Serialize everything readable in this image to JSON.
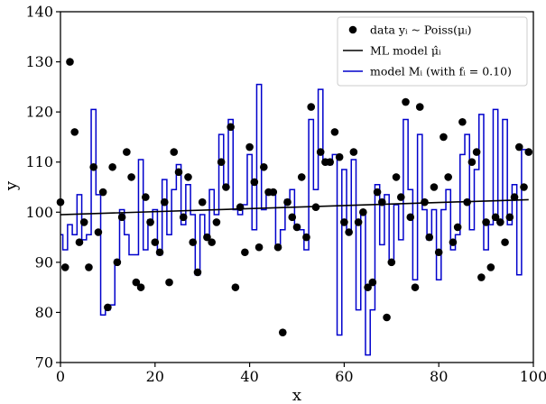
{
  "chart_data": {
    "type": "scatter",
    "xlabel": "x",
    "ylabel": "y",
    "xlim": [
      0,
      100
    ],
    "ylim": [
      70,
      140
    ],
    "x_ticks": [
      0,
      20,
      40,
      60,
      80,
      100
    ],
    "y_ticks": [
      70,
      80,
      90,
      100,
      110,
      120,
      130,
      140
    ],
    "grid": false,
    "legend_position": "top-right",
    "legend": [
      {
        "label": "data yᵢ ~ Poiss(μᵢ)",
        "marker": "dot",
        "color": "#000000"
      },
      {
        "label": "ML model μ̂ᵢ",
        "marker": "line",
        "color": "#000000"
      },
      {
        "label": "model Mᵢ  (with fᵢ = 0.10)",
        "marker": "line",
        "color": "#0000cc"
      }
    ],
    "scatter_points": [
      [
        0,
        102
      ],
      [
        1,
        89
      ],
      [
        2,
        130
      ],
      [
        3,
        116
      ],
      [
        4,
        94
      ],
      [
        5,
        98
      ],
      [
        6,
        89
      ],
      [
        7,
        109
      ],
      [
        8,
        96
      ],
      [
        9,
        104
      ],
      [
        10,
        81
      ],
      [
        11,
        109
      ],
      [
        12,
        90
      ],
      [
        13,
        99
      ],
      [
        14,
        112
      ],
      [
        15,
        107
      ],
      [
        16,
        86
      ],
      [
        17,
        85
      ],
      [
        18,
        103
      ],
      [
        19,
        98
      ],
      [
        20,
        94
      ],
      [
        21,
        92
      ],
      [
        22,
        102
      ],
      [
        23,
        86
      ],
      [
        24,
        112
      ],
      [
        25,
        108
      ],
      [
        26,
        99
      ],
      [
        27,
        107
      ],
      [
        28,
        94
      ],
      [
        29,
        88
      ],
      [
        30,
        102
      ],
      [
        31,
        95
      ],
      [
        32,
        94
      ],
      [
        33,
        98
      ],
      [
        34,
        110
      ],
      [
        35,
        105
      ],
      [
        36,
        117
      ],
      [
        37,
        85
      ],
      [
        38,
        101
      ],
      [
        39,
        92
      ],
      [
        40,
        113
      ],
      [
        41,
        106
      ],
      [
        42,
        93
      ],
      [
        43,
        109
      ],
      [
        44,
        104
      ],
      [
        45,
        104
      ],
      [
        46,
        93
      ],
      [
        47,
        76
      ],
      [
        48,
        102
      ],
      [
        49,
        99
      ],
      [
        50,
        97
      ],
      [
        51,
        107
      ],
      [
        52,
        95
      ],
      [
        53,
        121
      ],
      [
        54,
        101
      ],
      [
        55,
        112
      ],
      [
        56,
        110
      ],
      [
        57,
        110
      ],
      [
        58,
        116
      ],
      [
        59,
        111
      ],
      [
        60,
        98
      ],
      [
        61,
        96
      ],
      [
        62,
        112
      ],
      [
        63,
        98
      ],
      [
        64,
        100
      ],
      [
        65,
        85
      ],
      [
        66,
        86
      ],
      [
        67,
        104
      ],
      [
        68,
        102
      ],
      [
        69,
        79
      ],
      [
        70,
        90
      ],
      [
        71,
        107
      ],
      [
        72,
        103
      ],
      [
        73,
        122
      ],
      [
        74,
        99
      ],
      [
        75,
        85
      ],
      [
        76,
        121
      ],
      [
        77,
        102
      ],
      [
        78,
        95
      ],
      [
        79,
        105
      ],
      [
        80,
        92
      ],
      [
        81,
        115
      ],
      [
        82,
        107
      ],
      [
        83,
        94
      ],
      [
        84,
        97
      ],
      [
        85,
        118
      ],
      [
        86,
        102
      ],
      [
        87,
        110
      ],
      [
        88,
        112
      ],
      [
        89,
        87
      ],
      [
        90,
        98
      ],
      [
        91,
        89
      ],
      [
        92,
        99
      ],
      [
        93,
        98
      ],
      [
        94,
        94
      ],
      [
        95,
        99
      ],
      [
        96,
        103
      ],
      [
        97,
        113
      ],
      [
        98,
        105
      ],
      [
        99,
        112
      ]
    ],
    "ml_line": {
      "x": [
        0,
        99
      ],
      "y": [
        99.5,
        102.5
      ],
      "color": "#000000"
    },
    "model_step": {
      "color": "#0000cc",
      "values": [
        95.5,
        92.5,
        97.5,
        95.5,
        103.5,
        94.5,
        95.5,
        120.5,
        103.5,
        79.5,
        80.5,
        81.5,
        90.5,
        100.5,
        95.5,
        91.5,
        91.5,
        110.5,
        92.5,
        98.5,
        100.5,
        91.5,
        106.5,
        95.5,
        104.5,
        109.5,
        97.5,
        105.5,
        99.5,
        87.5,
        99.5,
        95.5,
        104.5,
        99.5,
        115.5,
        105.5,
        118.5,
        100.5,
        99.5,
        101.5,
        111.5,
        96.5,
        125.5,
        100.5,
        103.5,
        103.5,
        93.5,
        96.5,
        102.5,
        104.5,
        97.5,
        96.5,
        92.5,
        118.5,
        104.5,
        124.5,
        110.5,
        109.5,
        111.5,
        75.5,
        108.5,
        96.5,
        110.5,
        80.5,
        99.5,
        71.5,
        80.5,
        105.5,
        93.5,
        103.5,
        90.5,
        101.5,
        94.5,
        118.5,
        104.5,
        86.5,
        115.5,
        100.5,
        94.5,
        100.5,
        86.5,
        100.5,
        104.5,
        92.5,
        95.5,
        111.5,
        115.5,
        96.5,
        108.5,
        119.5,
        92.5,
        97.5,
        120.5,
        98.5,
        118.5,
        97.5,
        105.5,
        87.5,
        112.5,
        112.5
      ]
    }
  }
}
